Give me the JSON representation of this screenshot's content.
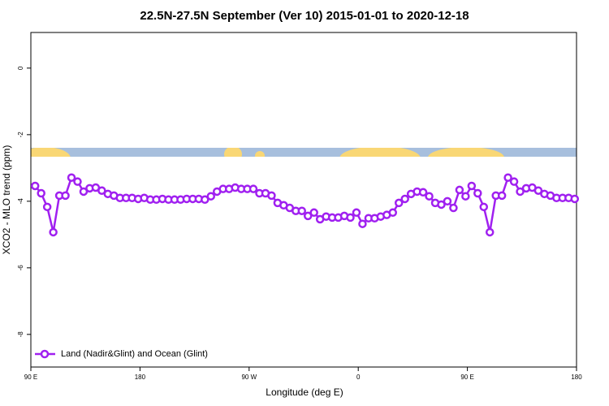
{
  "chart_data": {
    "type": "line",
    "title": "22.5N-27.5N September (Ver 10)   2015-01-01 to 2020-12-18",
    "x_label": "Longitude (deg E)",
    "y_label": "XCO2 - MLO trend (ppm)",
    "xlim": [
      90,
      540
    ],
    "ylim": [
      -8.98,
      1.07
    ],
    "xticks": [
      {
        "value": 90,
        "label": "90 E"
      },
      180,
      {
        "value": 270,
        "label": "90 W"
      },
      {
        "value": 360,
        "label": "0"
      },
      {
        "value": 450,
        "label": "90 E"
      },
      {
        "value": 540,
        "label": "180"
      }
    ],
    "yticks": [
      -8,
      -6,
      -4,
      -2,
      0
    ],
    "legend": "bottom-left",
    "x": [
      93.5,
      98.5,
      103.5,
      108.5,
      113.5,
      118.5,
      123.5,
      128.5,
      133.5,
      138.5,
      143.5,
      148.5,
      153.5,
      158.5,
      163.5,
      168.5,
      173.5,
      178.5,
      183.5,
      188.5,
      193.5,
      198.5,
      203.5,
      208.5,
      213.5,
      218.5,
      223.5,
      228.5,
      233.5,
      238.5,
      243.5,
      248.5,
      253.5,
      258.5,
      263.5,
      268.5,
      273.5,
      278.5,
      283.5,
      288.5,
      293.5,
      298.5,
      303.5,
      308.5,
      313.5,
      318.5,
      323.5,
      328.5,
      333.5,
      338.5,
      343.5,
      348.5,
      353.5,
      358.5,
      363.5,
      368.5,
      373.5,
      378.5,
      383.5,
      388.5,
      393.5,
      398.5,
      403.5,
      408.5,
      413.5,
      418.5,
      423.5,
      428.5,
      433.5,
      438.5,
      443.5,
      448.5,
      453.5,
      458.5,
      463.5,
      468.5,
      473.5,
      478.5,
      483.5,
      488.5,
      493.5,
      498.5,
      503.5,
      508.5,
      513.5,
      518.5,
      523.5,
      528.5,
      533.5,
      538.5
    ],
    "series": [
      {
        "name": "Land (Nadir&Glint) and Ocean (Glint)",
        "color": "#a020f0",
        "values": [
          -3.54,
          -3.76,
          -4.17,
          -4.93,
          -3.83,
          -3.83,
          -3.29,
          -3.41,
          -3.71,
          -3.61,
          -3.59,
          -3.68,
          -3.78,
          -3.83,
          -3.9,
          -3.9,
          -3.9,
          -3.93,
          -3.9,
          -3.95,
          -3.95,
          -3.93,
          -3.95,
          -3.95,
          -3.95,
          -3.93,
          -3.93,
          -3.93,
          -3.95,
          -3.85,
          -3.71,
          -3.63,
          -3.63,
          -3.59,
          -3.63,
          -3.63,
          -3.63,
          -3.76,
          -3.76,
          -3.83,
          -4.05,
          -4.12,
          -4.2,
          -4.29,
          -4.29,
          -4.44,
          -4.34,
          -4.54,
          -4.46,
          -4.49,
          -4.49,
          -4.44,
          -4.49,
          -4.34,
          -4.68,
          -4.51,
          -4.51,
          -4.46,
          -4.41,
          -4.34,
          -4.05,
          -3.93,
          -3.78,
          -3.71,
          -3.73,
          -3.85,
          -4.05,
          -4.1,
          -4.0,
          -4.2,
          -3.66,
          -3.85,
          -3.54,
          -3.76,
          -4.17,
          -4.93,
          -3.83,
          -3.83,
          -3.29,
          -3.41,
          -3.71,
          -3.61,
          -3.59,
          -3.68,
          -3.78,
          -3.83,
          -3.9,
          -3.9,
          -3.9,
          -3.93
        ]
      }
    ]
  }
}
